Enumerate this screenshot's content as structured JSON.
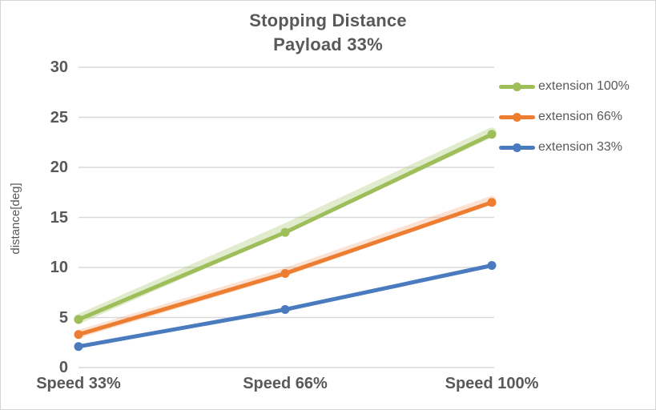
{
  "window": {
    "background": "#ffffff",
    "border_color": "#d6d6d6"
  },
  "chart_data": {
    "type": "line",
    "title": "Stopping Distance",
    "subtitle": "Payload 33%",
    "xlabel": "",
    "ylabel": "distance[deg]",
    "categories": [
      "Speed 33%",
      "Speed 66%",
      "Speed 100%"
    ],
    "series": [
      {
        "name": "extension 100%",
        "color": "#9dbe59",
        "values": [
          4.8,
          13.5,
          23.3
        ],
        "halo": {
          "values": [
            4.85,
            13.9,
            23.5
          ],
          "width": 12,
          "opacity": 0.3
        }
      },
      {
        "name": "extension 66%",
        "color": "#ed7d31",
        "values": [
          3.3,
          9.4,
          16.5
        ],
        "halo": {
          "values": [
            3.35,
            9.55,
            16.75
          ],
          "width": 10,
          "opacity": 0.22
        }
      },
      {
        "name": "extension 33%",
        "color": "#4a7bbe",
        "values": [
          2.1,
          5.8,
          10.2
        ],
        "halo": null
      }
    ],
    "ylim": [
      0,
      30
    ],
    "yticks": [
      0,
      5,
      10,
      15,
      20,
      25,
      30
    ],
    "grid": true,
    "legend_position": "right",
    "marker": "circle",
    "gridline_color": "#d9d9d9",
    "text_color": "#595959"
  }
}
